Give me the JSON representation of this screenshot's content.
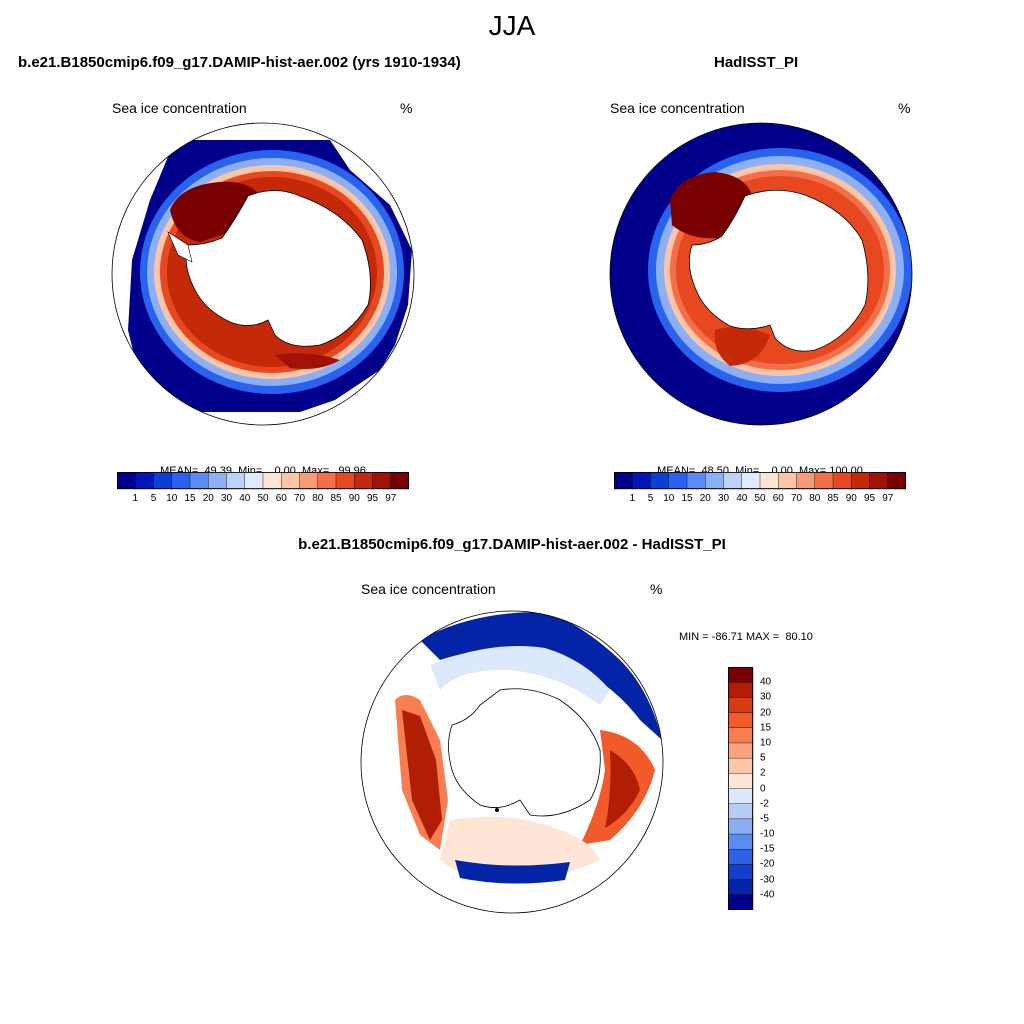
{
  "figure": {
    "title": "JJA"
  },
  "panels": [
    {
      "title": "b.e21.B1850cmip6.f09_g17.DAMIP-hist-aer.002 (yrs 1910-1934)",
      "left_label": "Sea ice concentration",
      "right_label": "%",
      "stats": {
        "mean": "MEAN=  49.39",
        "min": "Min=    0.00",
        "max": "Max=   99.96"
      }
    },
    {
      "title": "HadISST_PI",
      "left_label": "Sea ice concentration",
      "right_label": "%",
      "stats": {
        "mean": "MEAN=  48.50",
        "min": "Min=    0.00",
        "max": "Max= 100.00"
      }
    },
    {
      "title": "b.e21.B1850cmip6.f09_g17.DAMIP-hist-aer.002 - HadISST_PI",
      "left_label": "Sea ice concentration",
      "right_label": "%",
      "minmax": "MIN = -86.71 MAX =  80.10"
    }
  ],
  "colorbar_abs": {
    "levels": [
      "1",
      "5",
      "10",
      "15",
      "20",
      "30",
      "40",
      "50",
      "60",
      "70",
      "80",
      "85",
      "90",
      "95",
      "97"
    ],
    "colors": [
      "#00008c",
      "#0018b8",
      "#0a3fd8",
      "#2a62f0",
      "#5a8cf5",
      "#8cb0f5",
      "#bcd2f8",
      "#e0ecfb",
      "#fde5d4",
      "#fcc5a8",
      "#f99a76",
      "#f46e4a",
      "#e84820",
      "#c42a0a",
      "#a01206",
      "#780000"
    ]
  },
  "colorbar_diff": {
    "levels": [
      "40",
      "30",
      "20",
      "15",
      "10",
      "5",
      "2",
      "0",
      "-2",
      "-5",
      "-10",
      "-15",
      "-20",
      "-30",
      "-40"
    ],
    "colors": [
      "#780000",
      "#b21e04",
      "#d83a12",
      "#f25a2a",
      "#f87e52",
      "#fba27e",
      "#fdc6a8",
      "#fde6d6",
      "#dce8fb",
      "#b6cdf6",
      "#8aaef3",
      "#5a8cf0",
      "#2e62e6",
      "#1240cc",
      "#0424a8",
      "#00008c"
    ]
  },
  "colors": {
    "land": "#ffffff",
    "coast": "#000000",
    "frame": "#000000"
  }
}
